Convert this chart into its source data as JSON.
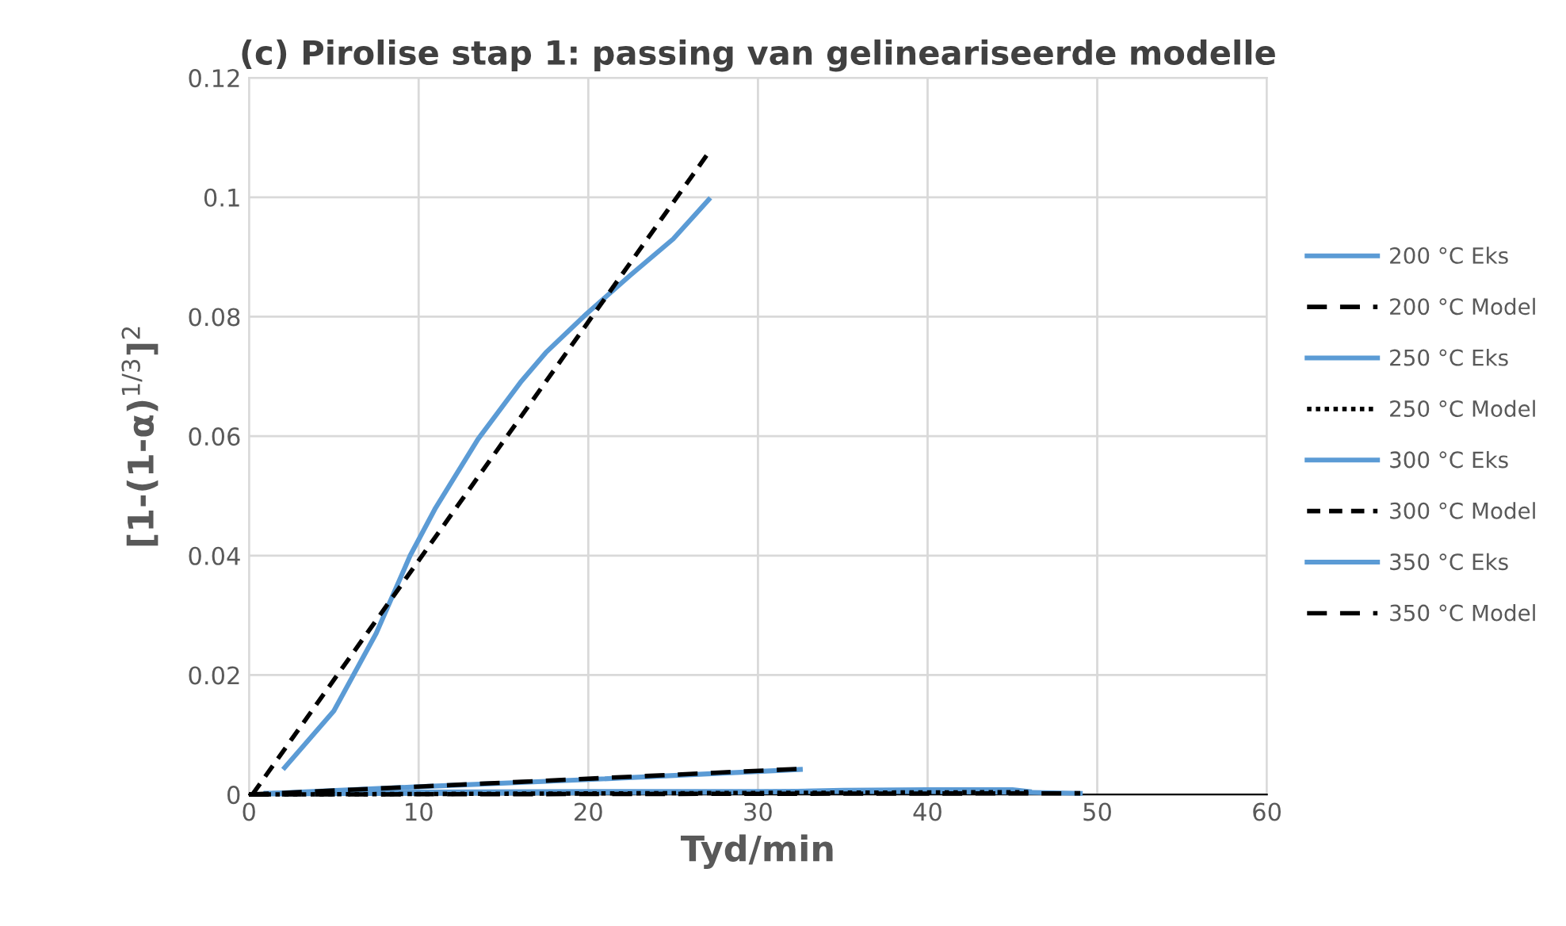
{
  "chart_data": {
    "type": "line",
    "title": "(c) Pirolise stap 1: passing van gelineariseerde modelle",
    "xlabel": "Tyd/min",
    "ylabel": "[1-(1-α)$^{1/3}$]$^{2}$",
    "xlim": [
      0,
      60
    ],
    "xticks": [
      0,
      10,
      20,
      30,
      40,
      50,
      60
    ],
    "ylim": [
      0,
      0.12
    ],
    "yticks": [
      0,
      0.02,
      0.04,
      0.06,
      0.08,
      0.1,
      0.12
    ],
    "grid": true,
    "legend": "right",
    "marker": "none",
    "series": [
      {
        "name": "200 °C Eks",
        "color": "#5b9bd5",
        "line_style": "solid",
        "x": [
          1,
          10,
          20,
          30,
          40,
          45,
          49
        ],
        "values": [
          0.0002,
          0.0004,
          0.0005,
          0.0005,
          0.0005,
          0.0004,
          0.0002
        ]
      },
      {
        "name": "200 °C Model",
        "color": "#000000",
        "line_style": "longdash",
        "x": [
          0,
          49
        ],
        "values": [
          0,
          0.0002
        ]
      },
      {
        "name": "250 °C Eks",
        "color": "#5b9bd5",
        "line_style": "solid",
        "x": [
          1,
          10,
          20,
          30,
          35,
          40,
          45,
          46
        ],
        "values": [
          0.0001,
          0.0002,
          0.0003,
          0.0004,
          0.0007,
          0.0008,
          0.0008,
          0.0005
        ]
      },
      {
        "name": "250 °C Model",
        "color": "#000000",
        "line_style": "dotted",
        "x": [
          0,
          46
        ],
        "values": [
          0,
          0.0004
        ]
      },
      {
        "name": "300 °C Eks",
        "color": "#5b9bd5",
        "line_style": "solid",
        "x": [
          2.1,
          5,
          7.5,
          9.5,
          11,
          13.5,
          16,
          17.5,
          19.9,
          22.5,
          25,
          27.1
        ],
        "values": [
          0.0045,
          0.014,
          0.027,
          0.04,
          0.048,
          0.0595,
          0.069,
          0.074,
          0.0805,
          0.087,
          0.093,
          0.0996
        ]
      },
      {
        "name": "300 °C Model",
        "color": "#000000",
        "line_style": "dashed",
        "x": [
          0.2,
          27.1
        ],
        "values": [
          0,
          0.1075
        ]
      },
      {
        "name": "350 °C Eks",
        "color": "#5b9bd5",
        "line_style": "solid",
        "x": [
          1.5,
          10,
          20,
          32.5
        ],
        "values": [
          0.0002,
          0.0013,
          0.0025,
          0.0042
        ]
      },
      {
        "name": "350 °C Model",
        "color": "#000000",
        "line_style": "longdash",
        "x": [
          0,
          32.5
        ],
        "values": [
          0,
          0.0043
        ]
      }
    ]
  }
}
